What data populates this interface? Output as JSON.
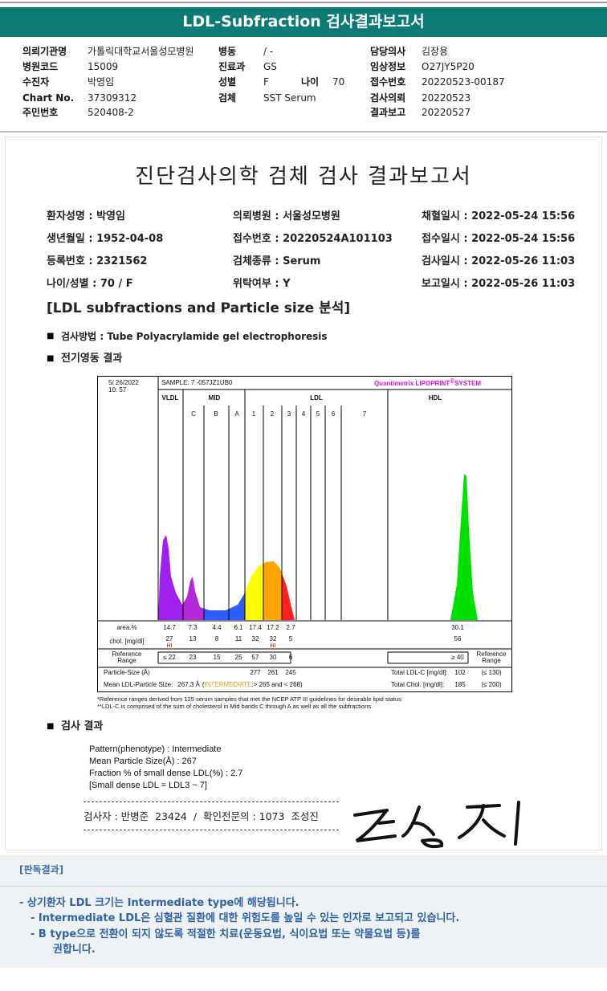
{
  "header": {
    "title": "LDL-Subfraction 검사결과보고서"
  },
  "info": {
    "col1": [
      [
        "의뢰기관명",
        "가톨릭대학교서울성모병원"
      ],
      [
        "병원코드",
        "15009"
      ],
      [
        "수진자",
        "박영임"
      ],
      [
        "Chart No.",
        "37309312"
      ],
      [
        "주민번호",
        "520408-2"
      ]
    ],
    "col2": [
      [
        "병동",
        "/ -"
      ],
      [
        "진료과",
        "GS"
      ],
      [
        "성별",
        "F"
      ],
      [
        "검체",
        "SST Serum"
      ]
    ],
    "age": [
      "나이",
      70
    ],
    "col3": [
      [
        "담당의사",
        "김장용"
      ],
      [
        "임상정보",
        "O27JY5P20"
      ],
      [
        "접수번호",
        "20220523-00187"
      ],
      [
        "검사의뢰",
        "20220523"
      ],
      [
        "결과보고",
        "20220527"
      ]
    ]
  },
  "report": {
    "title": "진단검사의학 검체 검사 결과보고서",
    "patient": [
      [
        "환자성명 : 박영임",
        "의뢰병원 : 서울성모병원",
        "채혈일시 : 2022-05-24 15:56"
      ],
      [
        "생년월일 : 1952-04-08",
        "접수번호 : 20220524A101103",
        "접수일시 : 2022-05-24 15:56"
      ],
      [
        "등록번호 : 2321562",
        "검체종류 : Serum",
        "검사일시 : 2022-05-26 11:03"
      ],
      [
        "나이/성별 : 70 / F",
        "위탁여부 : Y",
        "보고일시 : 2022-05-26 11:03"
      ]
    ],
    "section": "[LDL subfractions and Particle size 분석]",
    "method": "검사방법 : Tube Polyacrylamide gel electrophoresis",
    "electro": "전기영동 결과",
    "result_heading": "검사 결과",
    "result_lines": [
      "Pattern(phenotype) : Intermediate",
      "Mean Particle Size(Å) : 267",
      "Fraction % of small dense LDL(%) : 2.7",
      "[Small dense LDL = LDL3 ~ 7]"
    ],
    "signature": "검사자 : 반병준  23424  /  확인전문의 : 1073  조성진"
  },
  "gel": {
    "date": "5/ 26/2022",
    "time": "10: 57",
    "sample": "SAMPLE:   7 -057JZ1UB0",
    "system": "Quantimetrix LIPOPRINT",
    "system_mark": "®",
    "system_suffix": "SYSTEM",
    "bands": [
      "VLDL",
      "MID",
      "LDL",
      "HDL"
    ],
    "subbands": [
      "C",
      "B",
      "A",
      "1",
      "2",
      "3",
      "4",
      "5",
      "6",
      "7"
    ],
    "area_label": "area.%",
    "area": [
      14.7,
      7.3,
      4.4,
      6.1,
      17.4,
      17.2,
      2.7
    ],
    "area_hdl": 30.1,
    "chol_label": "chol. [mg/dl]",
    "chol": [
      27,
      13,
      8,
      11,
      32,
      32,
      5
    ],
    "chol_hdl": 56,
    "chol_flags": [
      "HI",
      null,
      null,
      null,
      null,
      "HI",
      null
    ],
    "ref_label": [
      "Reference",
      "Range"
    ],
    "ref": [
      "≤ 22",
      23,
      15,
      25,
      57,
      30,
      6
    ],
    "ref_hdl": "≥ 40",
    "size_label": "Particle-Size (Å)",
    "sizes": [
      277,
      261,
      245
    ],
    "mean_label": "Mean LDL-Particle Size:",
    "mean": "267.3 Å",
    "mean_note": [
      "(",
      "INTERMEDIATE",
      ":> 265 and < 268)"
    ],
    "total_ldl_label": "Total LDL-C [mg/dl]:",
    "total_ldl": 102,
    "total_ldl_ref": "(≤ 130)",
    "total_chol_label": "Total Chol. [mg/dl]:",
    "total_chol": 185,
    "total_chol_ref": "(≤ 200)",
    "footnotes": [
      "*Reference ranges derived from 125 serum samples that met the NCEP ATP III guidelines for desirable lipid status",
      "**LDL-C is comprised of the sum of cholesterol in Mid bands C through A as well as all the subfractions"
    ]
  },
  "reading": {
    "title": "[판독결과]",
    "lines": [
      "- 상기환자 LDL 크기는 Intermediate type에 해당됩니다.",
      "- Intermediate LDL은 심혈관 질환에 대한 위험도를 높일 수 있는 인자로 보고되고 있습니다.",
      "- B type으로 전환이 되지 않도록 적절한 치료(운동요법, 식이요법 또는 약물요법 등)를",
      "권합니다."
    ]
  }
}
